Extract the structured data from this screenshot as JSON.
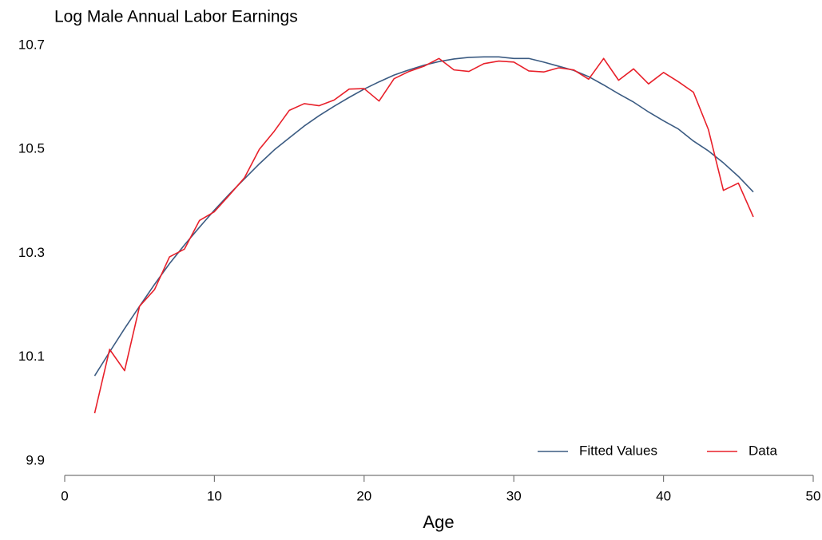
{
  "chart_data": {
    "type": "line",
    "title": "Log Male Annual Labor Earnings",
    "xlabel": "Age",
    "x": [
      2,
      3,
      4,
      5,
      6,
      7,
      8,
      9,
      10,
      11,
      12,
      13,
      14,
      15,
      16,
      17,
      18,
      19,
      20,
      21,
      22,
      23,
      24,
      25,
      26,
      27,
      28,
      29,
      30,
      31,
      32,
      33,
      34,
      35,
      36,
      37,
      38,
      39,
      40,
      41,
      42,
      43,
      44,
      45,
      46
    ],
    "series": [
      {
        "name": "Fitted Values",
        "color": "#3b5b82",
        "values": [
          10.064,
          10.11,
          10.155,
          10.198,
          10.24,
          10.28,
          10.316,
          10.35,
          10.383,
          10.414,
          10.443,
          10.472,
          10.499,
          10.522,
          10.545,
          10.565,
          10.583,
          10.6,
          10.616,
          10.63,
          10.643,
          10.653,
          10.662,
          10.669,
          10.674,
          10.677,
          10.678,
          10.678,
          10.675,
          10.675,
          10.668,
          10.66,
          10.652,
          10.64,
          10.624,
          10.607,
          10.591,
          10.572,
          10.555,
          10.539,
          10.516,
          10.497,
          10.474,
          10.448,
          10.418
        ]
      },
      {
        "name": "Data",
        "color": "#e8202a",
        "values": [
          9.992,
          10.115,
          10.074,
          10.198,
          10.23,
          10.293,
          10.308,
          10.363,
          10.38,
          10.412,
          10.445,
          10.5,
          10.535,
          10.575,
          10.588,
          10.584,
          10.595,
          10.616,
          10.617,
          10.593,
          10.636,
          10.65,
          10.66,
          10.675,
          10.653,
          10.65,
          10.665,
          10.67,
          10.668,
          10.651,
          10.649,
          10.657,
          10.653,
          10.635,
          10.675,
          10.633,
          10.655,
          10.626,
          10.648,
          10.63,
          10.61,
          10.538,
          10.421,
          10.435,
          10.37
        ]
      }
    ],
    "xlim": [
      0,
      50
    ],
    "xticks": [
      0,
      10,
      20,
      30,
      40,
      50
    ],
    "ylim": [
      9.9,
      10.7
    ],
    "yticks": [
      9.9,
      10.1,
      10.3,
      10.5,
      10.7
    ],
    "grid": false,
    "legend": "lower right"
  }
}
